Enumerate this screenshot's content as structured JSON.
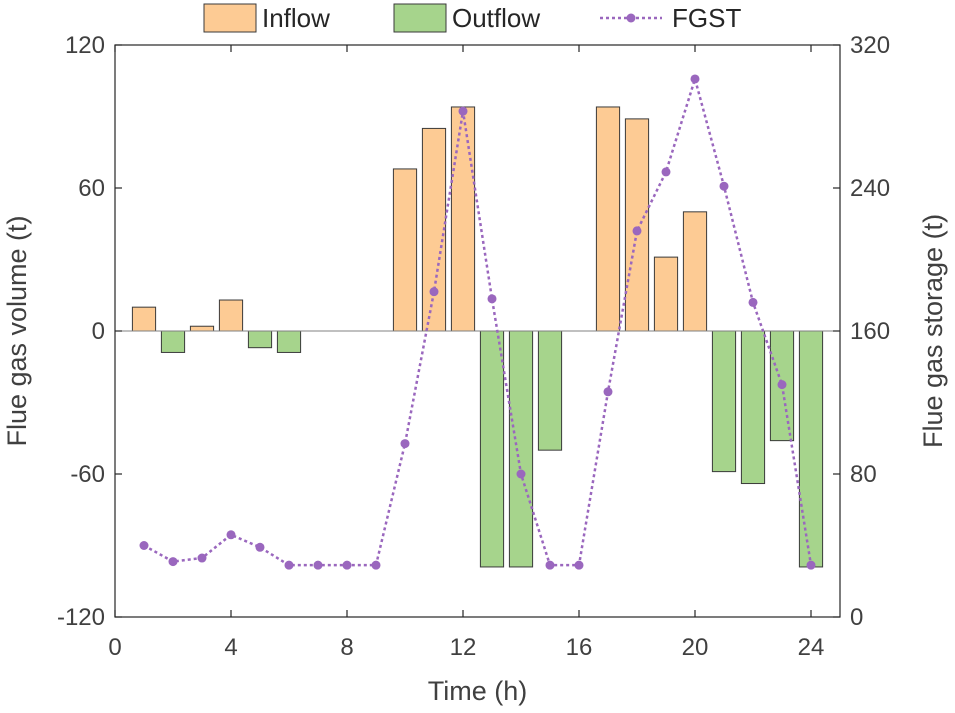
{
  "chart_data": {
    "type": "bar",
    "x": [
      1,
      2,
      3,
      4,
      5,
      6,
      7,
      8,
      9,
      10,
      11,
      12,
      13,
      14,
      15,
      16,
      17,
      18,
      19,
      20,
      21,
      22,
      23,
      24
    ],
    "series": [
      {
        "name": "Inflow",
        "type": "bar",
        "axis": "left",
        "color": "#FDCB94",
        "values": [
          10,
          0,
          2,
          13,
          0,
          0,
          0,
          0,
          0,
          68,
          85,
          94,
          0,
          0,
          0,
          0,
          94,
          89,
          31,
          50,
          0,
          0,
          0,
          0
        ]
      },
      {
        "name": "Outflow",
        "type": "bar",
        "axis": "left",
        "color": "#A6D48C",
        "values": [
          0,
          -9,
          0,
          0,
          -7,
          -9,
          0,
          0,
          0,
          0,
          0,
          0,
          -99,
          -99,
          -50,
          0,
          0,
          0,
          0,
          0,
          -59,
          -64,
          -46,
          -99
        ]
      },
      {
        "name": "FGST",
        "type": "line",
        "axis": "right",
        "color": "#9A67BE",
        "values": [
          40,
          31,
          33,
          46,
          39,
          29,
          29,
          29,
          29,
          97,
          182,
          283,
          178,
          80,
          29,
          29,
          126,
          216,
          249,
          301,
          241,
          176,
          130,
          29
        ]
      }
    ],
    "title": "",
    "xlabel": "Time (h)",
    "ylabel": "Flue gas volume (t)",
    "y2label": "Flue gas storage (t)",
    "xlim": [
      0,
      25
    ],
    "ylim": [
      -120,
      120
    ],
    "y2lim": [
      0,
      320
    ],
    "xticks": [
      "0",
      "4",
      "8",
      "12",
      "16",
      "20",
      "24"
    ],
    "yticks": [
      "-120",
      "-60",
      "0",
      "60",
      "120"
    ],
    "y2ticks": [
      "0",
      "80",
      "160",
      "240",
      "320"
    ],
    "legend": {
      "placement": "top",
      "entries": [
        "Inflow",
        "Outflow",
        "FGST"
      ]
    },
    "grid": false
  }
}
